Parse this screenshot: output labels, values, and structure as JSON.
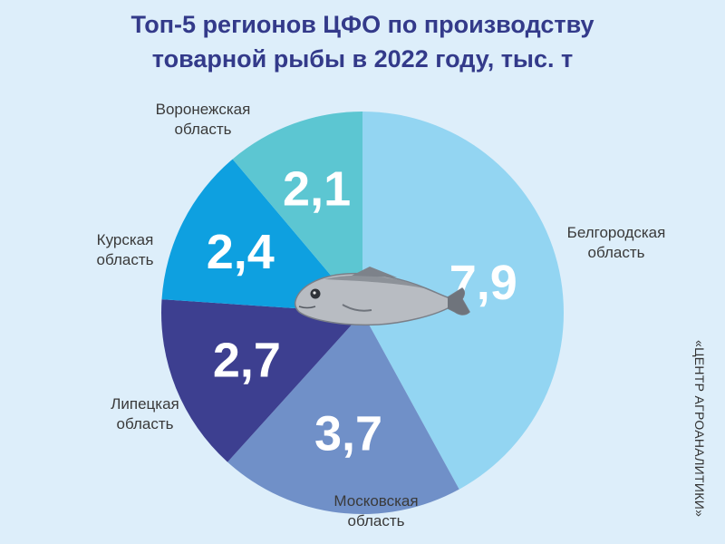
{
  "chart_data": {
    "type": "pie",
    "title": [
      "Топ-5 регионов ЦФО по производству",
      "товарной рыбы в 2022 году, тыс. т"
    ],
    "slices": [
      {
        "label": [
          "Белгородская",
          "область"
        ],
        "value": 7.9,
        "value_text": "7,9",
        "color": "#93d5f2"
      },
      {
        "label": [
          "Московская",
          "область"
        ],
        "value": 3.7,
        "value_text": "3,7",
        "color": "#7090c8"
      },
      {
        "label": [
          "Липецкая",
          "область"
        ],
        "value": 2.7,
        "value_text": "2,7",
        "color": "#3d3f90"
      },
      {
        "label": [
          "Курская",
          "область"
        ],
        "value": 2.4,
        "value_text": "2,4",
        "color": "#0ea0e0"
      },
      {
        "label": [
          "Воронежская",
          "область"
        ],
        "value": 2.1,
        "value_text": "2,1",
        "color": "#5cc6d2"
      }
    ],
    "center_image": "fish-icon"
  },
  "source": "«ЦЕНТР АГРОАНАЛИТИКИ»"
}
